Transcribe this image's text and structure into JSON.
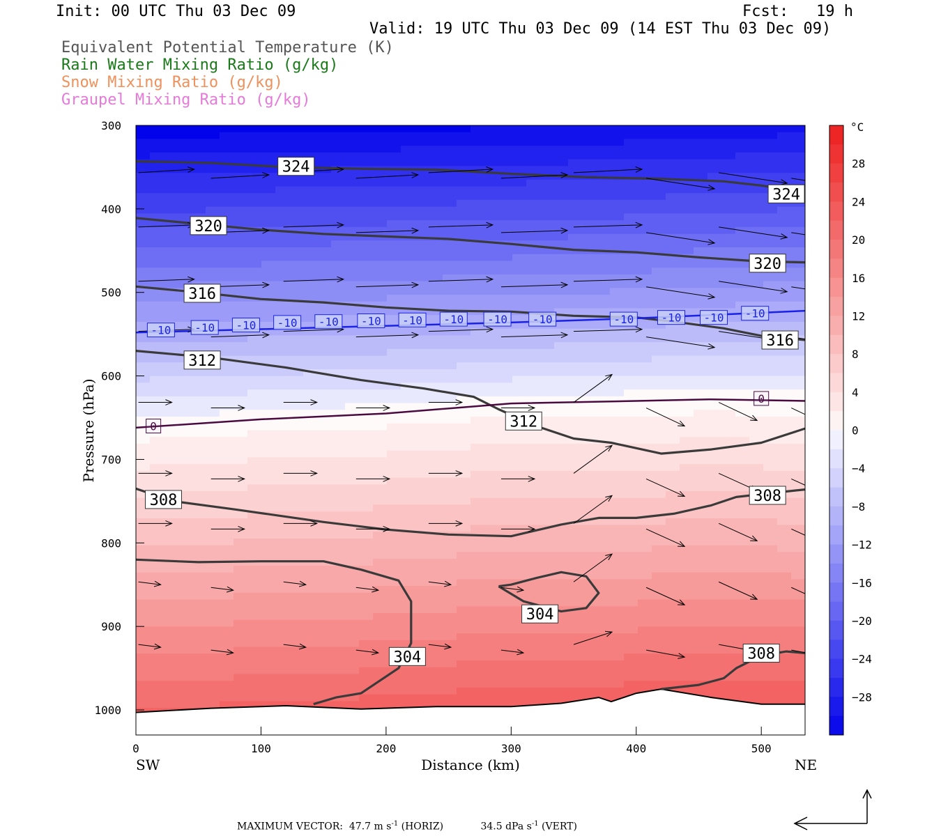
{
  "header": {
    "init": "Init: 00 UTC Thu 03 Dec 09",
    "fcst": "Fcst:   19 h",
    "valid": "Valid: 19 UTC Thu 03 Dec 09 (14 EST Thu 03 Dec 09)",
    "fields": [
      {
        "label": "Equivalent Potential Temperature (K)",
        "color": "#555555"
      },
      {
        "label": "Rain Water Mixing Ratio (g/kg)",
        "color": "#1a7a1a"
      },
      {
        "label": "Snow Mixing Ratio (g/kg)",
        "color": "#f0905a"
      },
      {
        "label": "Graupel Mixing Ratio (g/kg)",
        "color": "#e67ad8"
      }
    ]
  },
  "chart_data": {
    "type": "cross-section",
    "xlabel": "Distance (km)",
    "ylabel": "Pressure (hPa)",
    "xlim": [
      0,
      535
    ],
    "ylim": [
      1030,
      300
    ],
    "x_ticks": [
      0,
      100,
      200,
      300,
      400,
      500
    ],
    "y_ticks": [
      300,
      400,
      500,
      600,
      700,
      800,
      900,
      1000
    ],
    "x_end_labels": {
      "left": "SW",
      "right": "NE"
    },
    "colorbar": {
      "unit": "°C",
      "ticks": [
        28,
        24,
        20,
        16,
        12,
        8,
        4,
        0,
        -4,
        -8,
        -12,
        -16,
        -20,
        -24,
        -28
      ],
      "range": [
        -32,
        32
      ]
    },
    "theta_e_contours": [
      {
        "label": "324",
        "points": [
          [
            0,
            343
          ],
          [
            60,
            345
          ],
          [
            120,
            350
          ],
          [
            180,
            352
          ],
          [
            240,
            353
          ],
          [
            300,
            358
          ],
          [
            360,
            362
          ],
          [
            420,
            364
          ],
          [
            470,
            367
          ],
          [
            500,
            372
          ],
          [
            535,
            380
          ]
        ],
        "labels_at": [
          [
            128,
            349
          ],
          [
            520,
            382
          ]
        ]
      },
      {
        "label": "320",
        "points": [
          [
            0,
            411
          ],
          [
            50,
            418
          ],
          [
            100,
            425
          ],
          [
            150,
            430
          ],
          [
            200,
            433
          ],
          [
            250,
            436
          ],
          [
            300,
            442
          ],
          [
            350,
            449
          ],
          [
            400,
            452
          ],
          [
            450,
            458
          ],
          [
            500,
            463
          ],
          [
            535,
            464
          ]
        ],
        "labels_at": [
          [
            58,
            420
          ],
          [
            505,
            465
          ]
        ]
      },
      {
        "label": "316",
        "points": [
          [
            0,
            493
          ],
          [
            50,
            500
          ],
          [
            100,
            508
          ],
          [
            150,
            512
          ],
          [
            200,
            518
          ],
          [
            250,
            522
          ],
          [
            300,
            523
          ],
          [
            350,
            528
          ],
          [
            400,
            530
          ],
          [
            430,
            535
          ],
          [
            470,
            543
          ],
          [
            500,
            552
          ],
          [
            535,
            557
          ]
        ],
        "labels_at": [
          [
            53,
            501
          ],
          [
            515,
            557
          ]
        ]
      },
      {
        "label": "312",
        "points": [
          [
            0,
            570
          ],
          [
            60,
            578
          ],
          [
            120,
            590
          ],
          [
            180,
            605
          ],
          [
            230,
            615
          ],
          [
            270,
            625
          ],
          [
            290,
            640
          ],
          [
            320,
            660
          ],
          [
            350,
            675
          ],
          [
            380,
            680
          ],
          [
            420,
            693
          ],
          [
            460,
            688
          ],
          [
            500,
            680
          ],
          [
            535,
            663
          ]
        ],
        "labels_at": [
          [
            53,
            581
          ],
          [
            310,
            654
          ]
        ]
      },
      {
        "label": "308",
        "points": [
          [
            0,
            735
          ],
          [
            30,
            750
          ],
          [
            80,
            760
          ],
          [
            150,
            775
          ],
          [
            200,
            784
          ],
          [
            250,
            790
          ],
          [
            300,
            792
          ],
          [
            340,
            778
          ],
          [
            370,
            770
          ],
          [
            400,
            770
          ],
          [
            430,
            765
          ],
          [
            460,
            755
          ],
          [
            480,
            745
          ],
          [
            510,
            740
          ],
          [
            535,
            736
          ]
        ],
        "labels_at": [
          [
            22,
            748
          ],
          [
            505,
            743
          ]
        ]
      },
      {
        "label": "304",
        "points": [
          [
            0,
            820
          ],
          [
            50,
            823
          ],
          [
            100,
            822
          ],
          [
            150,
            822
          ],
          [
            180,
            832
          ],
          [
            210,
            845
          ],
          [
            220,
            870
          ],
          [
            220,
            920
          ],
          [
            210,
            950
          ],
          [
            180,
            980
          ],
          [
            160,
            985
          ],
          [
            142,
            993
          ]
        ],
        "labels_at": [
          [
            217,
            936
          ]
        ]
      },
      {
        "label": "304",
        "points": [
          [
            290,
            852
          ],
          [
            310,
            870
          ],
          [
            340,
            882
          ],
          [
            360,
            878
          ],
          [
            370,
            860
          ],
          [
            360,
            840
          ],
          [
            340,
            835
          ],
          [
            320,
            842
          ],
          [
            300,
            850
          ],
          [
            290,
            852
          ]
        ],
        "labels_at": [
          [
            323,
            885
          ]
        ]
      },
      {
        "label": "308",
        "points": [
          [
            420,
            975
          ],
          [
            450,
            970
          ],
          [
            470,
            962
          ],
          [
            480,
            950
          ],
          [
            500,
            935
          ],
          [
            520,
            930
          ],
          [
            535,
            932
          ]
        ],
        "labels_at": [
          [
            500,
            932
          ]
        ]
      }
    ],
    "isotherms": [
      {
        "label": "-10",
        "points": [
          [
            0,
            548
          ],
          [
            100,
            544
          ],
          [
            200,
            540
          ],
          [
            300,
            536
          ],
          [
            400,
            531
          ],
          [
            460,
            527
          ],
          [
            535,
            522
          ]
        ],
        "labels_at": [
          [
            20,
            545
          ],
          [
            55,
            542
          ],
          [
            88,
            539
          ],
          [
            121,
            536
          ],
          [
            154,
            535
          ],
          [
            188,
            534
          ],
          [
            221,
            533
          ],
          [
            254,
            532
          ],
          [
            289,
            532
          ],
          [
            325,
            532
          ],
          [
            390,
            532
          ],
          [
            428,
            530
          ],
          [
            462,
            530
          ],
          [
            495,
            525
          ]
        ]
      },
      {
        "label": "0",
        "points": [
          [
            0,
            662
          ],
          [
            100,
            652
          ],
          [
            200,
            645
          ],
          [
            300,
            633
          ],
          [
            400,
            630
          ],
          [
            460,
            628
          ],
          [
            535,
            630
          ]
        ],
        "labels_at": [
          [
            14,
            660
          ],
          [
            500,
            627
          ]
        ]
      }
    ],
    "terrain_pressure": [
      [
        0,
        1003
      ],
      [
        60,
        998
      ],
      [
        120,
        995
      ],
      [
        180,
        999
      ],
      [
        240,
        996
      ],
      [
        300,
        996
      ],
      [
        340,
        992
      ],
      [
        370,
        985
      ],
      [
        380,
        990
      ],
      [
        400,
        980
      ],
      [
        420,
        975
      ],
      [
        460,
        985
      ],
      [
        500,
        993
      ],
      [
        535,
        993
      ]
    ],
    "maximum_vector": {
      "label": "MAXIMUM VECTOR:",
      "horiz_value": "47.7",
      "horiz_unit": "m s",
      "horiz_exp": "-1",
      "horiz_tag": "(HORIZ)",
      "vert_value": "34.5",
      "vert_unit": "dPa s",
      "vert_exp": "-1",
      "vert_tag": "(VERT)"
    }
  }
}
